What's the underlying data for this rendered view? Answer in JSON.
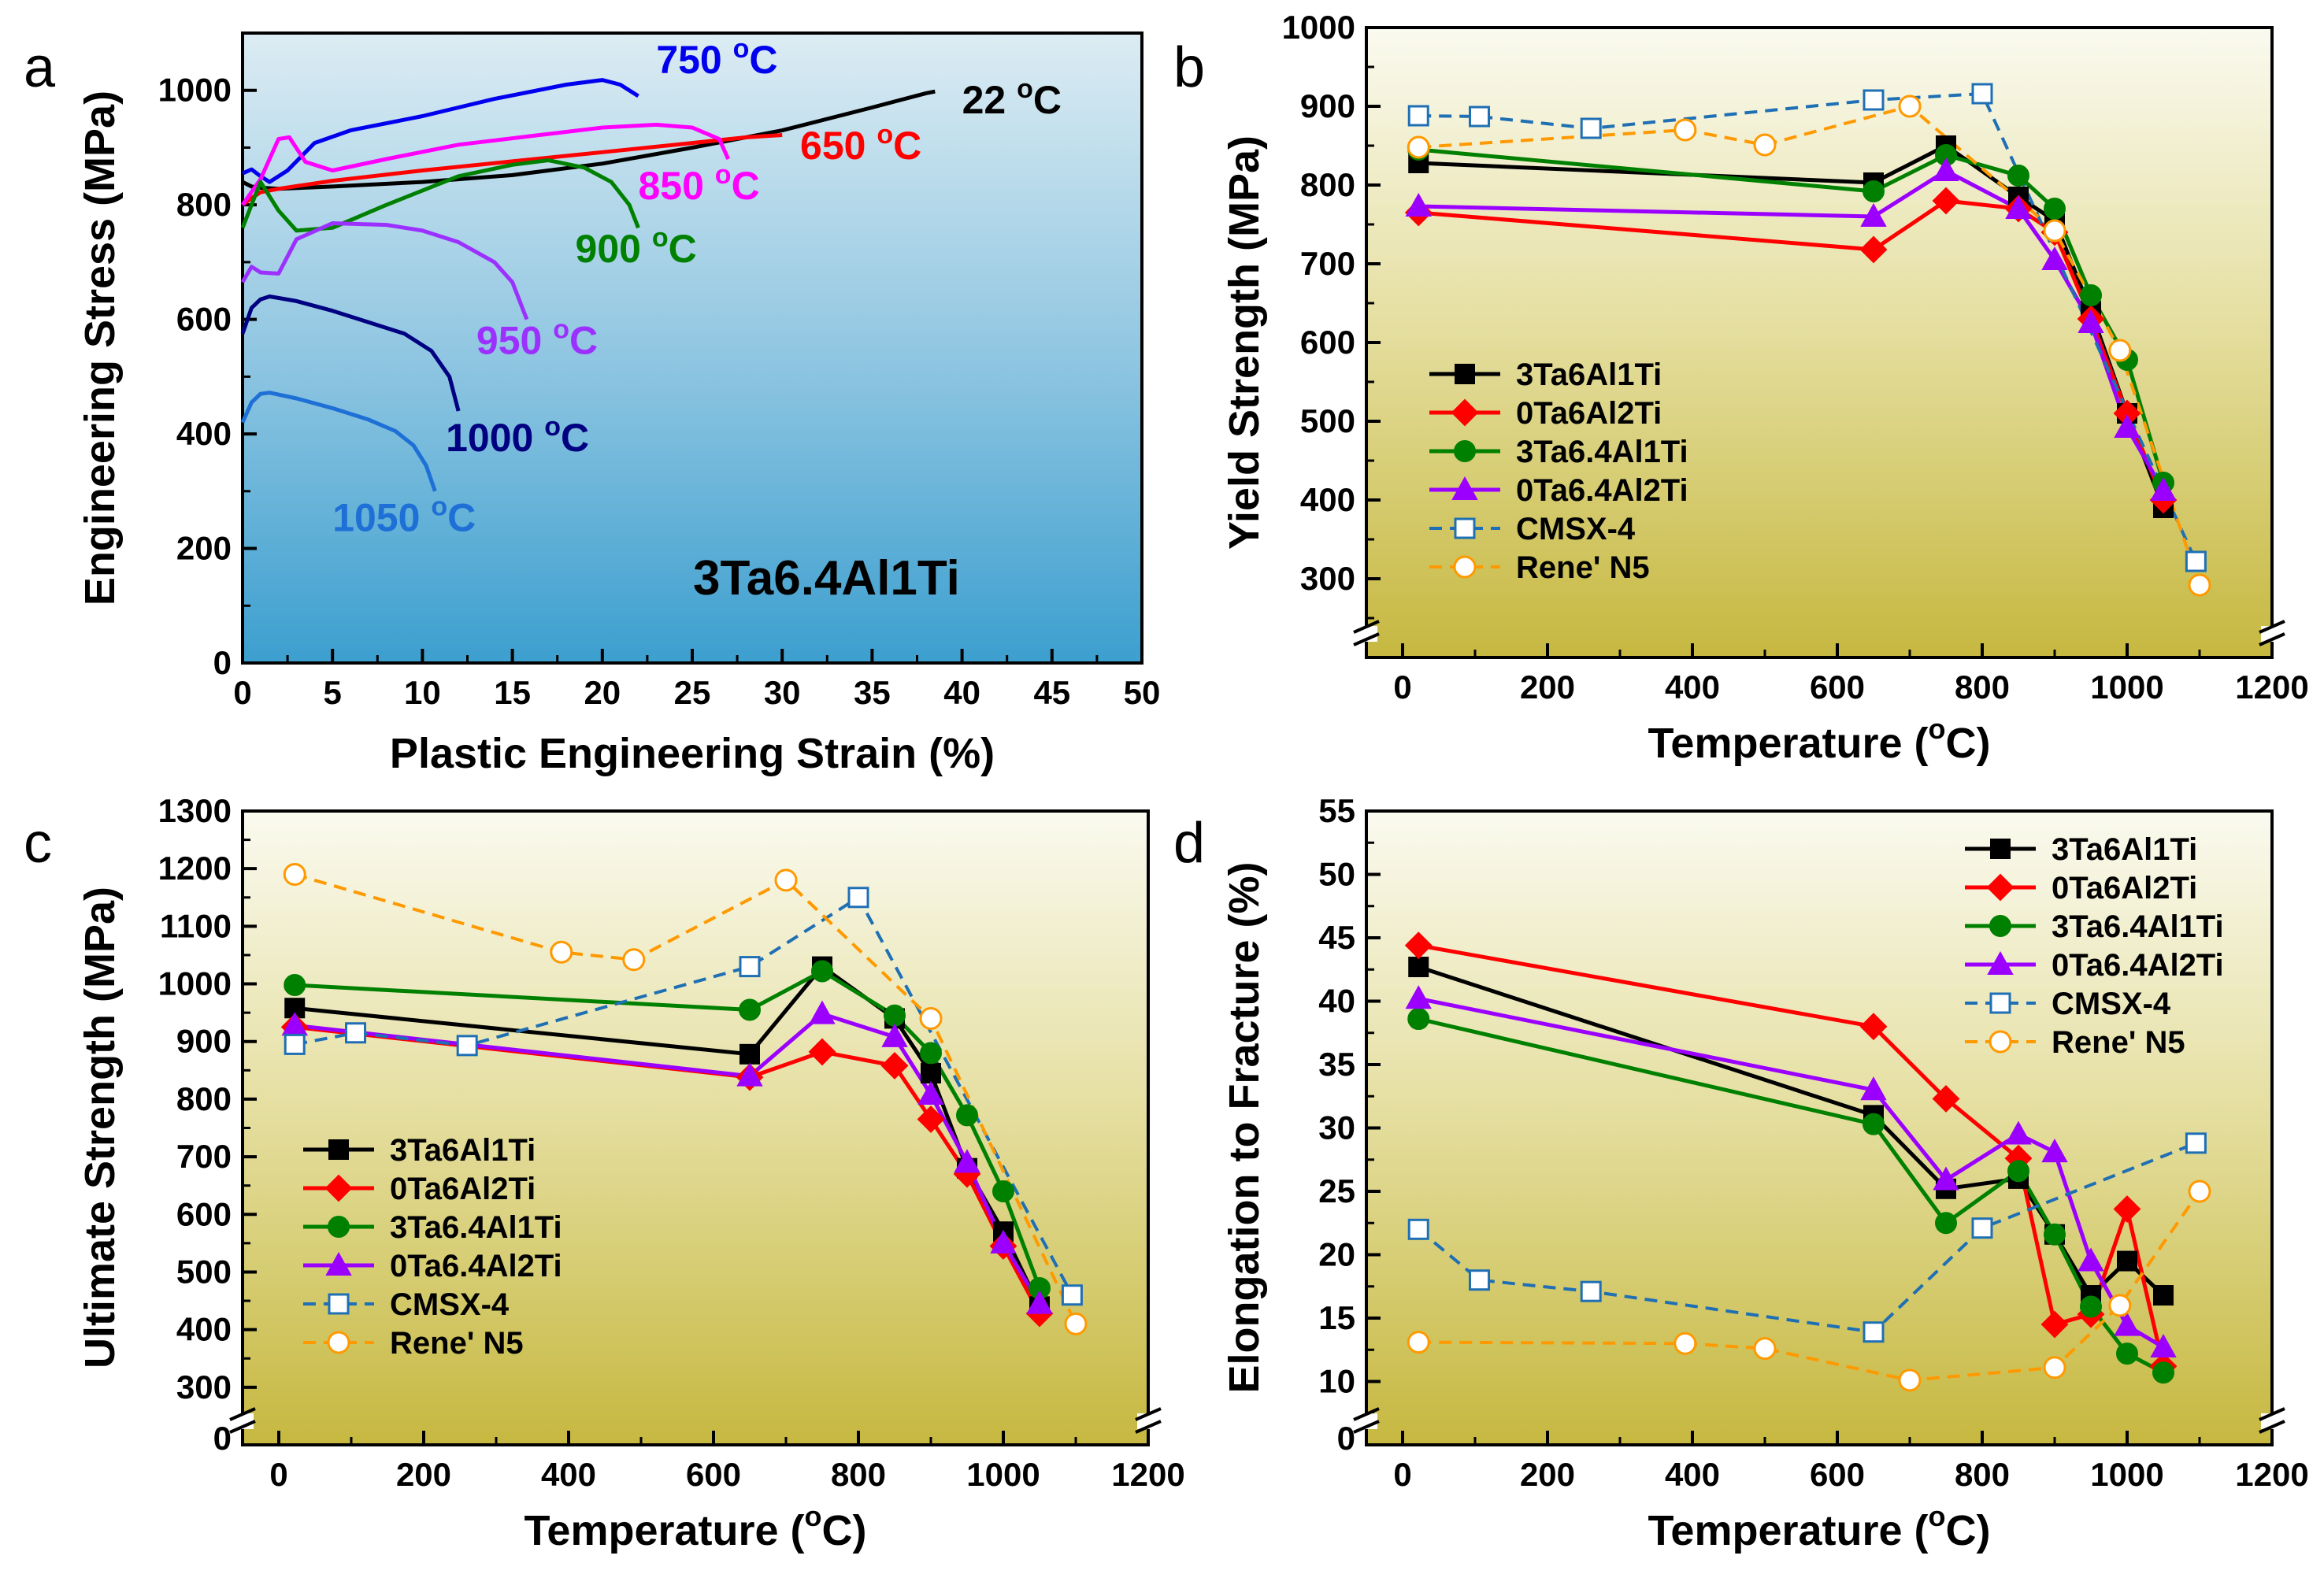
{
  "chart_data": [
    {
      "panel": "a",
      "type": "line",
      "title": "3Ta6.4Al1Ti",
      "xlabel": "Plastic Engineering Strain (%)",
      "ylabel": "Engineering Stress (MPa)",
      "xlim": [
        0,
        50
      ],
      "ylim": [
        0,
        1100
      ],
      "xticks": [
        0,
        5,
        10,
        15,
        20,
        25,
        30,
        35,
        40,
        45,
        50
      ],
      "yticks": [
        0,
        200,
        400,
        600,
        800,
        1000
      ],
      "series": [
        {
          "name": "22 °C",
          "color": "#000000",
          "x": [
            0,
            0.5,
            1,
            2,
            5,
            10,
            15,
            20,
            25,
            30,
            35,
            38,
            38.5
          ],
          "y": [
            840,
            832,
            830,
            828,
            832,
            840,
            852,
            872,
            900,
            930,
            970,
            995,
            998
          ],
          "label_x": 40,
          "label_y": 960
        },
        {
          "name": "650 °C",
          "color": "#ff0000",
          "x": [
            0,
            0.5,
            1,
            2,
            5,
            10,
            15,
            20,
            25,
            28,
            30
          ],
          "y": [
            800,
            812,
            822,
            828,
            842,
            860,
            876,
            892,
            908,
            918,
            922
          ],
          "label_x": 31,
          "label_y": 880
        },
        {
          "name": "750 °C",
          "color": "#0000ee",
          "x": [
            0,
            0.5,
            1,
            1.5,
            2.5,
            4,
            6,
            10,
            14,
            18,
            20,
            21,
            22
          ],
          "y": [
            855,
            862,
            850,
            840,
            860,
            908,
            930,
            955,
            985,
            1010,
            1018,
            1010,
            990
          ],
          "label_x": 23,
          "label_y": 1030
        },
        {
          "name": "850 °C",
          "color": "#ff00ff",
          "x": [
            0,
            1,
            2,
            2.6,
            3.5,
            5,
            8,
            12,
            16,
            20,
            23,
            25,
            26.5,
            27
          ],
          "y": [
            800,
            845,
            915,
            918,
            875,
            860,
            880,
            905,
            920,
            935,
            940,
            935,
            915,
            880
          ],
          "label_x": 22,
          "label_y": 810
        },
        {
          "name": "900 °C",
          "color": "#008000",
          "x": [
            0,
            1,
            2,
            3,
            5,
            8,
            12,
            15,
            17,
            19,
            20.5,
            21.5,
            22
          ],
          "y": [
            760,
            840,
            790,
            755,
            760,
            800,
            850,
            870,
            878,
            865,
            840,
            800,
            760
          ],
          "label_x": 18.5,
          "label_y": 700
        },
        {
          "name": "950 °C",
          "color": "#9b30ff",
          "x": [
            0,
            0.5,
            1,
            2,
            3,
            5,
            8,
            10,
            12,
            14,
            15,
            15.8
          ],
          "y": [
            665,
            692,
            682,
            680,
            740,
            768,
            765,
            755,
            735,
            700,
            665,
            600
          ],
          "label_x": 13,
          "label_y": 540
        },
        {
          "name": "1000 °C",
          "color": "#000080",
          "x": [
            0,
            0.5,
            1,
            1.5,
            3,
            5,
            7,
            9,
            10.5,
            11.5,
            12
          ],
          "y": [
            575,
            620,
            635,
            640,
            632,
            615,
            595,
            575,
            545,
            500,
            440
          ],
          "label_x": 11.3,
          "label_y": 370
        },
        {
          "name": "1050 °C",
          "color": "#1e6fd6",
          "x": [
            0,
            0.5,
            1,
            1.5,
            3,
            5,
            7,
            8.5,
            9.5,
            10.2,
            10.7
          ],
          "y": [
            420,
            455,
            470,
            472,
            462,
            445,
            425,
            405,
            380,
            345,
            300
          ],
          "label_x": 5,
          "label_y": 230
        }
      ]
    },
    {
      "panel": "b",
      "type": "line",
      "xlabel": "Temperature (°C)",
      "ylabel": "Yield Strength (MPa)",
      "xlim": [
        -50,
        1200
      ],
      "ylim": [
        200,
        1000
      ],
      "xticks": [
        0,
        200,
        400,
        600,
        800,
        1000,
        1200
      ],
      "yticks": [
        300,
        400,
        500,
        600,
        700,
        800,
        900,
        1000
      ],
      "bottom_tick": "",
      "series": [
        {
          "name": "3Ta6Al1Ti",
          "color": "#000000",
          "marker": "square",
          "dash": false,
          "x": [
            22,
            650,
            750,
            850,
            900,
            950,
            1000,
            1050
          ],
          "y": [
            828,
            803,
            850,
            785,
            755,
            640,
            510,
            390
          ]
        },
        {
          "name": "0Ta6Al2Ti",
          "color": "#ff0000",
          "marker": "diamond",
          "dash": false,
          "x": [
            22,
            650,
            750,
            850,
            900,
            950,
            1000,
            1050
          ],
          "y": [
            765,
            718,
            780,
            770,
            740,
            630,
            510,
            400
          ]
        },
        {
          "name": "3Ta6.4Al1Ti",
          "color": "#008000",
          "marker": "circle",
          "dash": false,
          "x": [
            22,
            650,
            750,
            850,
            900,
            950,
            1000,
            1050
          ],
          "y": [
            845,
            792,
            838,
            812,
            770,
            660,
            578,
            422
          ]
        },
        {
          "name": "0Ta6.4Al2Ti",
          "color": "#9b00ff",
          "marker": "triangle",
          "dash": false,
          "x": [
            22,
            650,
            750,
            850,
            900,
            950,
            1000,
            1050
          ],
          "y": [
            773,
            760,
            818,
            770,
            705,
            625,
            492,
            412
          ]
        },
        {
          "name": "CMSX-4",
          "color": "#1f6fb4",
          "marker": "open-square",
          "dash": true,
          "x": [
            22,
            106,
            260,
            650,
            800,
            1095
          ],
          "y": [
            888,
            887,
            872,
            908,
            916,
            322
          ]
        },
        {
          "name": "Rene' N5",
          "color": "#ff9900",
          "marker": "open-circle",
          "dash": true,
          "x": [
            22,
            390,
            500,
            700,
            900,
            990,
            1100
          ],
          "y": [
            848,
            870,
            851,
            900,
            742,
            590,
            292
          ]
        }
      ]
    },
    {
      "panel": "c",
      "type": "line",
      "xlabel": "Temperature (°C)",
      "ylabel": "Ultimate Strength (MPa)",
      "xlim": [
        -50,
        1200
      ],
      "ylim": [
        200,
        1300
      ],
      "xticks": [
        0,
        200,
        400,
        600,
        800,
        1000,
        1200
      ],
      "yticks": [
        300,
        400,
        500,
        600,
        700,
        800,
        900,
        1000,
        1100,
        1200,
        1300
      ],
      "bottom_tick": "0",
      "series": [
        {
          "name": "3Ta6Al1Ti",
          "color": "#000000",
          "marker": "square",
          "dash": false,
          "x": [
            22,
            650,
            750,
            850,
            900,
            950,
            1000,
            1050
          ],
          "y": [
            958,
            878,
            1030,
            940,
            845,
            680,
            570,
            440
          ]
        },
        {
          "name": "0Ta6Al2Ti",
          "color": "#ff0000",
          "marker": "diamond",
          "dash": false,
          "x": [
            22,
            650,
            750,
            850,
            900,
            950,
            1000,
            1050
          ],
          "y": [
            925,
            838,
            882,
            858,
            765,
            670,
            545,
            428
          ]
        },
        {
          "name": "3Ta6.4Al1Ti",
          "color": "#008000",
          "marker": "circle",
          "dash": false,
          "x": [
            22,
            650,
            750,
            850,
            900,
            950,
            1000,
            1050
          ],
          "y": [
            998,
            955,
            1022,
            945,
            880,
            772,
            640,
            472
          ]
        },
        {
          "name": "0Ta6.4Al2Ti",
          "color": "#9b00ff",
          "marker": "triangle",
          "dash": false,
          "x": [
            22,
            650,
            750,
            850,
            900,
            950,
            1000,
            1050
          ],
          "y": [
            928,
            840,
            948,
            908,
            808,
            690,
            550,
            445
          ]
        },
        {
          "name": "CMSX-4",
          "color": "#1f6fb4",
          "marker": "open-square",
          "dash": true,
          "x": [
            22,
            106,
            260,
            650,
            800,
            1095
          ],
          "y": [
            895,
            915,
            893,
            1030,
            1150,
            460
          ]
        },
        {
          "name": "Rene' N5",
          "color": "#ff9900",
          "marker": "open-circle",
          "dash": true,
          "x": [
            22,
            390,
            490,
            700,
            900,
            1100
          ],
          "y": [
            1190,
            1055,
            1042,
            1180,
            940,
            410
          ]
        }
      ]
    },
    {
      "panel": "d",
      "type": "line",
      "xlabel": "Temperature (°C)",
      "ylabel": "Elongation to Fracture (%)",
      "xlim": [
        -50,
        1200
      ],
      "ylim": [
        5,
        55
      ],
      "xticks": [
        0,
        200,
        400,
        600,
        800,
        1000,
        1200
      ],
      "yticks": [
        10,
        15,
        20,
        25,
        30,
        35,
        40,
        45,
        50,
        55
      ],
      "bottom_tick": "0",
      "series": [
        {
          "name": "3Ta6Al1Ti",
          "color": "#000000",
          "marker": "square",
          "dash": false,
          "x": [
            22,
            650,
            750,
            850,
            900,
            950,
            1000,
            1050
          ],
          "y": [
            42.7,
            31.0,
            25.2,
            26.0,
            21.6,
            16.8,
            19.5,
            16.8
          ]
        },
        {
          "name": "0Ta6Al2Ti",
          "color": "#ff0000",
          "marker": "diamond",
          "dash": false,
          "x": [
            22,
            650,
            750,
            850,
            900,
            950,
            1000,
            1050
          ],
          "y": [
            44.4,
            38.0,
            32.3,
            27.6,
            14.5,
            15.3,
            23.6,
            11.2
          ]
        },
        {
          "name": "3Ta6.4Al1Ti",
          "color": "#008000",
          "marker": "circle",
          "dash": false,
          "x": [
            22,
            650,
            750,
            850,
            900,
            950,
            1000,
            1050
          ],
          "y": [
            38.6,
            30.3,
            22.5,
            26.6,
            21.6,
            15.9,
            12.2,
            10.7
          ]
        },
        {
          "name": "0Ta6.4Al2Ti",
          "color": "#9b00ff",
          "marker": "triangle",
          "dash": false,
          "x": [
            22,
            650,
            750,
            850,
            900,
            950,
            1000,
            1050
          ],
          "y": [
            40.2,
            33.0,
            25.9,
            29.5,
            28.1,
            19.5,
            14.4,
            12.7
          ]
        },
        {
          "name": "CMSX-4",
          "color": "#1f6fb4",
          "marker": "open-square",
          "dash": true,
          "x": [
            22,
            106,
            260,
            650,
            800,
            1095
          ],
          "y": [
            22.0,
            18.0,
            17.1,
            13.9,
            22.1,
            28.8
          ]
        },
        {
          "name": "Rene' N5",
          "color": "#ff9900",
          "marker": "open-circle",
          "dash": true,
          "x": [
            22,
            390,
            500,
            700,
            900,
            990,
            1100
          ],
          "y": [
            13.1,
            13.0,
            12.6,
            10.1,
            11.1,
            16.0,
            25.0
          ]
        }
      ]
    }
  ],
  "colors": {
    "frame": "#000000",
    "panel_a_top": "#dcecf3",
    "panel_a_bottom": "#3c9fcf",
    "panel_bd_top": "#fafaf0",
    "panel_bd_bottom": "#c6b840"
  }
}
